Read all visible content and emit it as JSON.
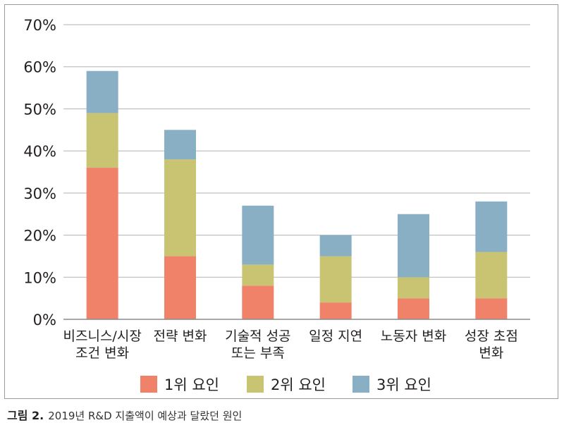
{
  "chart_data": {
    "type": "bar",
    "stacked": true,
    "categories": [
      [
        "비즈니스/시장",
        "조건 변화"
      ],
      [
        "전략 변화"
      ],
      [
        "기술적 성공",
        "또는 부족"
      ],
      [
        "일정 지연"
      ],
      [
        "노동자 변화"
      ],
      [
        "성장 초점",
        "변화"
      ]
    ],
    "series": [
      {
        "name": "1위 요인",
        "color": "#f0826a",
        "values": [
          36,
          15,
          8,
          4,
          5,
          5
        ]
      },
      {
        "name": "2위 요인",
        "color": "#c9c472",
        "values": [
          13,
          23,
          5,
          11,
          5,
          11
        ]
      },
      {
        "name": "3위 요인",
        "color": "#89afc5",
        "values": [
          10,
          7,
          14,
          5,
          15,
          12
        ]
      }
    ],
    "y_ticks": [
      "0%",
      "10%",
      "20%",
      "30%",
      "40%",
      "50%",
      "60%",
      "70%"
    ],
    "ylim": [
      0,
      70
    ],
    "grid": true,
    "legend_position": "bottom"
  },
  "caption": {
    "label": "그림 2.",
    "text": "2019년 R&D 지출액이 예상과 달랐던 원인"
  }
}
